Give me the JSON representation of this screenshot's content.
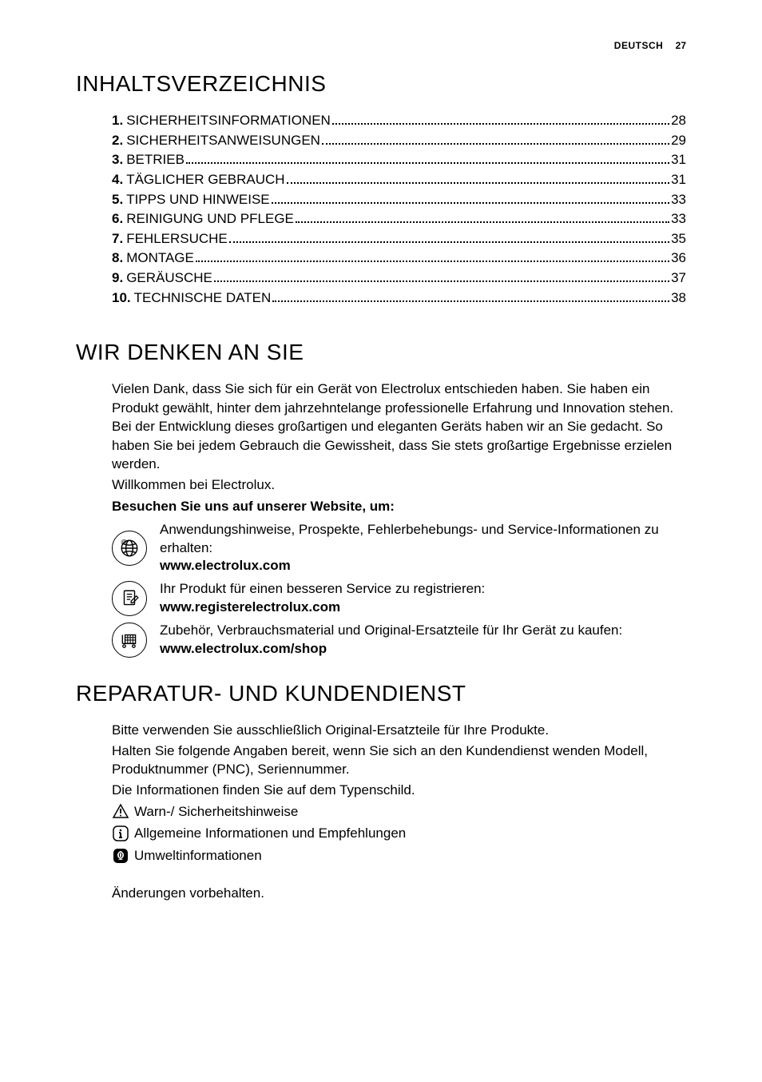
{
  "header": {
    "language": "DEUTSCH",
    "page": "27"
  },
  "toc_heading": "INHALTSVERZEICHNIS",
  "toc": [
    {
      "num": "1.",
      "title": "SICHERHEITSINFORMATIONEN",
      "page": "28"
    },
    {
      "num": "2.",
      "title": "SICHERHEITSANWEISUNGEN",
      "page": "29"
    },
    {
      "num": "3.",
      "title": "BETRIEB",
      "page": "31"
    },
    {
      "num": "4.",
      "title": "TÄGLICHER GEBRAUCH",
      "page": "31"
    },
    {
      "num": "5.",
      "title": "TIPPS UND HINWEISE",
      "page": "33"
    },
    {
      "num": "6.",
      "title": "REINIGUNG UND PFLEGE",
      "page": "33"
    },
    {
      "num": "7.",
      "title": "FEHLERSUCHE",
      "page": "35"
    },
    {
      "num": "8.",
      "title": "MONTAGE",
      "page": "36"
    },
    {
      "num": "9.",
      "title": "GERÄUSCHE",
      "page": "37"
    },
    {
      "num": "10.",
      "title": "TECHNISCHE DATEN",
      "page": "38"
    }
  ],
  "think_heading": "WIR DENKEN AN SIE",
  "think_body": "Vielen Dank, dass Sie sich für ein Gerät von Electrolux entschieden haben. Sie haben ein Produkt gewählt, hinter dem jahrzehntelange professionelle Erfahrung und Innovation stehen. Bei der Entwicklung dieses großartigen und eleganten Geräts haben wir an Sie gedacht. So haben Sie bei jedem Gebrauch die Gewissheit, dass Sie stets großartige Ergebnisse erzielen werden.",
  "welcome": "Willkommen bei Electrolux.",
  "visit_label": "Besuchen Sie uns auf unserer Website, um:",
  "links": [
    {
      "icon": "globe",
      "text": "Anwendungshinweise, Prospekte, Fehlerbehebungs- und Service-Informationen zu erhalten:",
      "url": "www.electrolux.com"
    },
    {
      "icon": "register",
      "text": "Ihr Produkt für einen besseren Service zu registrieren:",
      "url": "www.registerelectrolux.com"
    },
    {
      "icon": "cart",
      "text": "Zubehör, Verbrauchsmaterial und Original-Ersatzteile für Ihr Gerät zu kaufen:",
      "url": "www.electrolux.com/shop"
    }
  ],
  "service_heading": "REPARATUR- UND KUNDENDIENST",
  "service_lines": [
    "Bitte verwenden Sie ausschließlich Original-Ersatzteile für Ihre Produkte.",
    "Halten Sie folgende Angaben bereit, wenn Sie sich an den Kundendienst wenden Modell, Produktnummer (PNC), Seriennummer.",
    "Die Informationen finden Sie auf dem Typenschild."
  ],
  "legend": [
    {
      "icon": "warning",
      "text": "Warn-/ Sicherheitshinweise"
    },
    {
      "icon": "info",
      "text": "Allgemeine Informationen und Empfehlungen"
    },
    {
      "icon": "eco",
      "text": "Umweltinformationen"
    }
  ],
  "footer_note": "Änderungen vorbehalten."
}
